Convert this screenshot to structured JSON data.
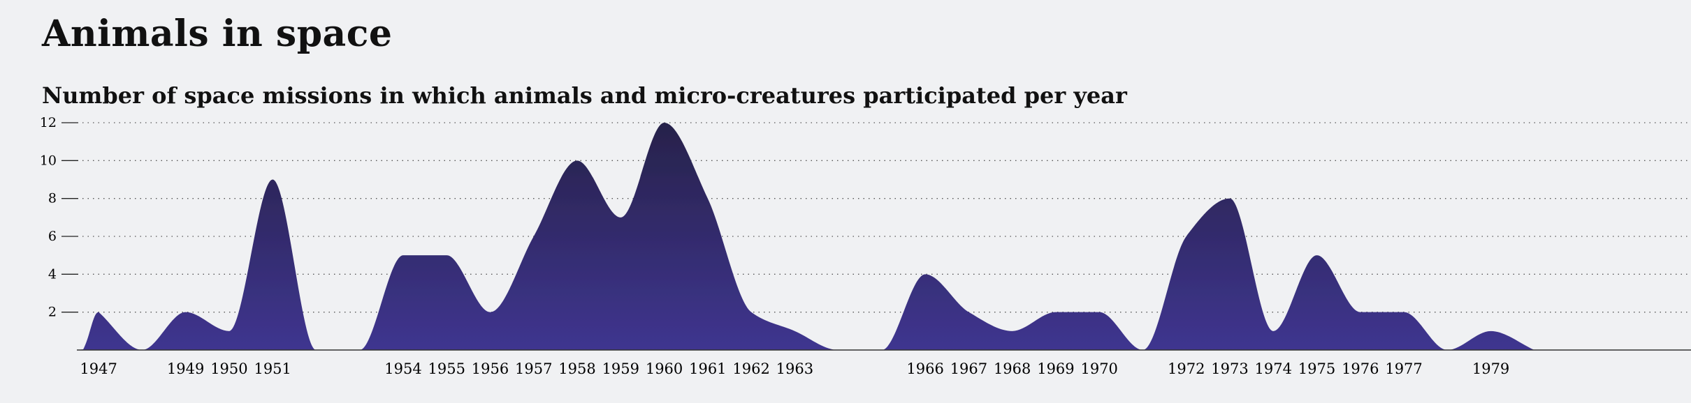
{
  "header": {
    "title": "Animals in space",
    "subtitle": "Number of space missions in which animals and micro-creatures participated per year"
  },
  "chart_data": {
    "type": "area",
    "title": "Animals in space",
    "subtitle": "Number of space missions in which animals and micro-creatures participated per year",
    "xlabel": "",
    "ylabel": "",
    "xlim": [
      1946.5,
      1983.6
    ],
    "ylim": [
      0,
      12
    ],
    "yticks": [
      2,
      4,
      6,
      8,
      10,
      12
    ],
    "grid": "horizontal-dotted",
    "fill_top": "#2a2550",
    "fill_bottom": "#3f3590",
    "x": [
      1947,
      1948,
      1949,
      1950,
      1951,
      1952,
      1953,
      1954,
      1955,
      1956,
      1957,
      1958,
      1959,
      1960,
      1961,
      1962,
      1963,
      1964,
      1965,
      1966,
      1967,
      1968,
      1969,
      1970,
      1971,
      1972,
      1973,
      1974,
      1975,
      1976,
      1977,
      1978,
      1979,
      1980
    ],
    "values": [
      2,
      0,
      2,
      1,
      9,
      0,
      0,
      5,
      5,
      2,
      6,
      10,
      7,
      12,
      8,
      2,
      1,
      0,
      0,
      4,
      2,
      1,
      2,
      2,
      0,
      6,
      8,
      1,
      5,
      2,
      2,
      0,
      1,
      0
    ],
    "x_tick_labels": [
      "1947",
      "1949",
      "1950",
      "1951",
      "1954",
      "1955",
      "1956",
      "1957",
      "1958",
      "1959",
      "1960",
      "1961",
      "1962",
      "1963",
      "1966",
      "1967",
      "1968",
      "1969",
      "1970",
      "1972",
      "1973",
      "1974",
      "1975",
      "1976",
      "1977",
      "1979"
    ]
  }
}
